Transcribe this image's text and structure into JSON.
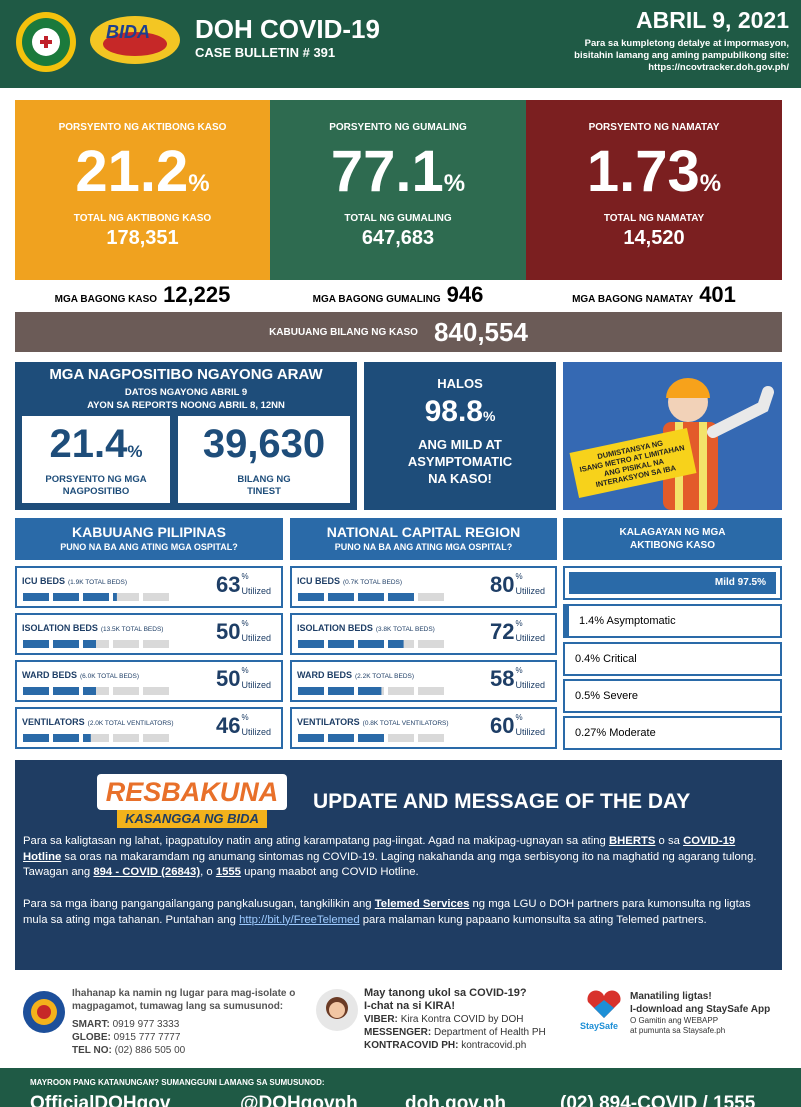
{
  "header": {
    "title": "DOH COVID-19",
    "bulletin": "CASE BULLETIN # 391",
    "logo_text": "BIDA",
    "date": "ABRIL 9, 2021",
    "note_lines": [
      "Para sa kumpletong detalye at impormasyon,",
      "bisitahin lamang ang aming pampublikong site:",
      "https://ncovtracker.doh.gov.ph/"
    ]
  },
  "percent_sign": "%",
  "stats": [
    {
      "label": "PORSYENTO NG AKTIBONG KASO",
      "percent": "21.2",
      "total_label": "TOTAL NG AKTIBONG KASO",
      "total": "178,351",
      "new_label": "MGA BAGONG KASO",
      "new": "12,225"
    },
    {
      "label": "PORSYENTO NG GUMALING",
      "percent": "77.1",
      "total_label": "TOTAL NG GUMALING",
      "total": "647,683",
      "new_label": "MGA BAGONG GUMALING",
      "new": "946"
    },
    {
      "label": "PORSYENTO NG NAMATAY",
      "percent": "1.73",
      "total_label": "TOTAL NG NAMATAY",
      "total": "14,520",
      "new_label": "MGA BAGONG NAMATAY",
      "new": "401"
    }
  ],
  "total_cases": {
    "label": "KABUUANG BILANG NG KASO",
    "value": "840,554"
  },
  "positives": {
    "title": "MGA NAGPOSITIBO NGAYONG ARAW",
    "sub1": "DATOS NGAYONG ABRIL 9",
    "sub2": "AYON SA REPORTS NOONG ABRIL 8, 12NN",
    "rate": "21.4",
    "rate_label": "PORSYENTO NG MGA NAGPOSITIBO",
    "tested": "39,630",
    "tested_label": "BILANG NG TINEST"
  },
  "mild": {
    "top": "HALOS",
    "value": "98.8",
    "line1": "ANG MILD AT",
    "line2": "ASYMPTOMATIC",
    "line3": "NA KASO!"
  },
  "sign": {
    "lines": [
      "DUMISTANSYA NG",
      "ISANG METRO AT LIMITAHAN",
      "ANG PISIKAL NA",
      "INTERAKSYON SA IBA"
    ]
  },
  "utilized_label": "Utilized",
  "hospitals": [
    {
      "title": "KABUUANG PILIPINAS",
      "subtitle": "PUNO NA BA ANG ATING MGA OSPITAL?",
      "rows": [
        {
          "name": "ICU BEDS",
          "total": "(1.9K TOTAL BEDS)",
          "utilized": 63
        },
        {
          "name": "ISOLATION BEDS",
          "total": "(13.5K TOTAL BEDS)",
          "utilized": 50
        },
        {
          "name": "WARD BEDS",
          "total": "(6.0K TOTAL BEDS)",
          "utilized": 50
        },
        {
          "name": "VENTILATORS",
          "total": "(2.0K TOTAL VENTILATORS)",
          "utilized": 46
        }
      ]
    },
    {
      "title": "NATIONAL CAPITAL REGION",
      "subtitle": "PUNO NA BA ANG ATING MGA OSPITAL?",
      "rows": [
        {
          "name": "ICU BEDS",
          "total": "(0.7K TOTAL BEDS)",
          "utilized": 80
        },
        {
          "name": "ISOLATION BEDS",
          "total": "(3.8K TOTAL BEDS)",
          "utilized": 72
        },
        {
          "name": "WARD BEDS",
          "total": "(2.2K TOTAL BEDS)",
          "utilized": 58
        },
        {
          "name": "VENTILATORS",
          "total": "(0.8K TOTAL VENTILATORS)",
          "utilized": 60
        }
      ]
    }
  ],
  "status": {
    "title_line1": "KALAGAYAN NG MGA",
    "title_line2": "AKTIBONG KASO",
    "items": [
      "Mild 97.5%",
      "1.4% Asymptomatic",
      "0.4% Critical",
      "0.5% Severe",
      "0.27% Moderate"
    ]
  },
  "message": {
    "logo_top": "RESBAKUNA",
    "logo_bottom": "KASANGGA NG BIDA",
    "title": "UPDATE AND MESSAGE OF THE DAY",
    "paragraphs": [
      [
        {
          "text": "Para sa kaligtasan ng lahat, ipagpatuloy natin ang ating karampatang pag-iingat. Agad na makipag-ugnayan sa ating "
        },
        {
          "text": "BHERTS",
          "style": "bold"
        },
        {
          "text": " o sa "
        },
        {
          "text": "COVID-19 Hotline",
          "style": "bold"
        },
        {
          "text": " sa oras na makaramdam ng anumang sintomas ng COVID-19. Laging nakahanda ang mga serbisyong ito na maghatid ng agarang tulong. Tawagan ang "
        },
        {
          "text": "894 - COVID (26843)",
          "style": "bold"
        },
        {
          "text": ", o "
        },
        {
          "text": "1555",
          "style": "bold"
        },
        {
          "text": " upang maabot ang COVID Hotline."
        }
      ],
      [
        {
          "text": "Para sa mga ibang pangangailangang pangkalusugan, tangkilikin ang "
        },
        {
          "text": "Telemed Services",
          "style": "bold"
        },
        {
          "text": " ng mga LGU o DOH partners para kumonsulta ng ligtas mula sa ating mga tahanan. Puntahan ang "
        },
        {
          "text": "http://bit.ly/FreeTelemed",
          "style": "link"
        },
        {
          "text": " para malaman kung papaano kumonsulta sa ating Telemed partners."
        }
      ]
    ]
  },
  "footer": {
    "isolate": {
      "text": "Ihahanap ka namin ng lugar para mag-isolate o magpagamot, tumawag lang sa sumusunod:",
      "lines": [
        {
          "label": "SMART:",
          "value": "0919 977 3333"
        },
        {
          "label": "GLOBE:",
          "value": "0915 777 7777"
        },
        {
          "label": "TEL NO:",
          "value": "(02) 886 505 00"
        }
      ]
    },
    "kira": {
      "line1": "May tanong ukol sa COVID-19?",
      "line2": "I-chat na si KIRA!",
      "lines": [
        {
          "label": "VIBER:",
          "value": "Kira Kontra COVID by DOH"
        },
        {
          "label": "MESSENGER:",
          "value": "Department of Health PH"
        },
        {
          "label": "KONTRACOVID PH:",
          "value": "kontracovid.ph"
        }
      ]
    },
    "staysafe": {
      "logo": "StaySafe",
      "line1": "Manatiling ligtas!",
      "line2": "I-download ang StaySafe App",
      "line3": "O Gamitin ang WEBAPP",
      "line4": "at pumunta sa Staysafe.ph"
    },
    "bar_title": "MAYROON PANG KATANUNGAN? SUMANGGUNI LAMANG SA SUMUSUNOD:",
    "links": [
      "OfficialDOHgov",
      "@DOHgovph",
      "doh.gov.ph",
      "(02) 894-COVID / 1555"
    ]
  }
}
